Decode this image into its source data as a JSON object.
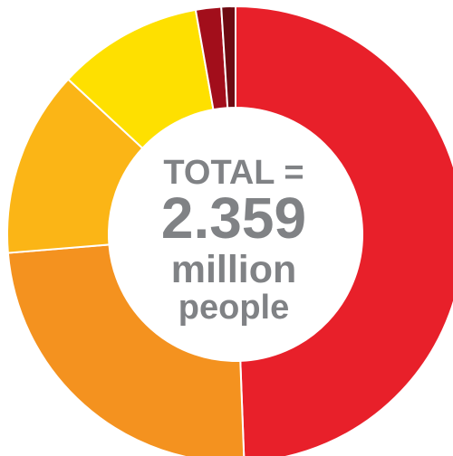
{
  "chart_data": {
    "type": "pie",
    "variant": "donut",
    "title": "",
    "categories": [
      "",
      "",
      "",
      "",
      "",
      "",
      ""
    ],
    "values": [
      49.4,
      24.3,
      13.2,
      10.3,
      1.8,
      1.0,
      0.0
    ],
    "colors": [
      "#E8202A",
      "#F4921F",
      "#FBB516",
      "#FEE000",
      "#A20E1B",
      "#6E0A12",
      "#E8202A"
    ],
    "start_angle_deg": 0,
    "direction": "clockwise",
    "annotations": {
      "line1": "TOTAL =",
      "line2": "2.359",
      "line3": "million",
      "line4": "people"
    },
    "legend": "none",
    "background": "#FFFFFF"
  }
}
